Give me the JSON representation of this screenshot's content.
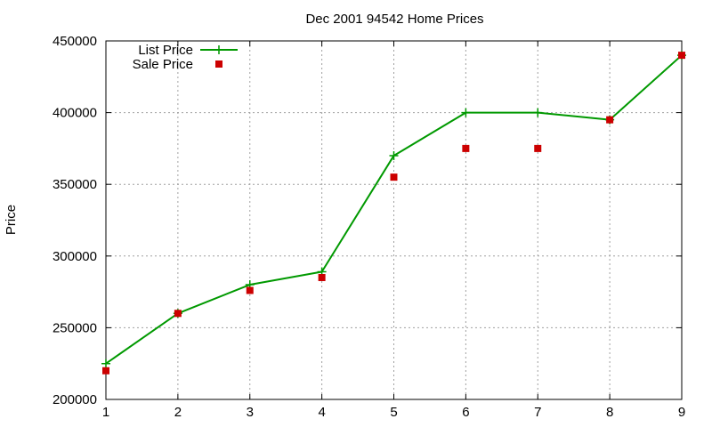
{
  "chart_data": {
    "type": "line",
    "title": "Dec 2001 94542 Home Prices",
    "xlabel": "",
    "ylabel": "Price",
    "x": [
      1,
      2,
      3,
      4,
      5,
      6,
      7,
      8,
      9
    ],
    "xlim": [
      1,
      9
    ],
    "ylim": [
      200000,
      450000
    ],
    "x_ticks": [
      "1",
      "2",
      "3",
      "4",
      "5",
      "6",
      "7",
      "8",
      "9"
    ],
    "y_ticks": [
      "200000",
      "250000",
      "300000",
      "350000",
      "400000",
      "450000"
    ],
    "grid": true,
    "legend_position": "top-left",
    "series": [
      {
        "name": "List Price",
        "style": "line+cross",
        "color": "#009900",
        "values": [
          225000,
          260000,
          280000,
          289000,
          370000,
          400000,
          400000,
          395000,
          440000
        ]
      },
      {
        "name": "Sale Price",
        "style": "square-markers",
        "color": "#cc0000",
        "values": [
          220000,
          260000,
          276000,
          285000,
          355000,
          375000,
          375000,
          395000,
          440000
        ]
      }
    ]
  }
}
